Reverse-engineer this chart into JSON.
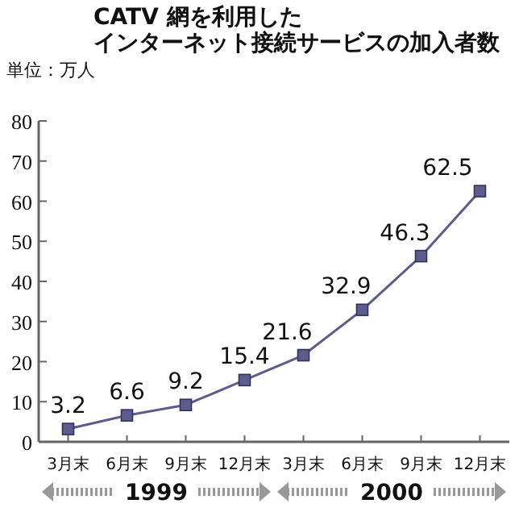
{
  "chart_data": {
    "type": "line",
    "title": "CATV 網を利用した",
    "subtitle": "インターネット接続サービスの加入者数",
    "ylabel": "単位：万人",
    "categories": [
      "3月末",
      "6月末",
      "9月末",
      "12月末",
      "3月末",
      "6月末",
      "9月末",
      "12月末"
    ],
    "series": [
      {
        "color": "#5c5c8e",
        "values": [
          3.2,
          6.6,
          9.2,
          15.4,
          21.6,
          32.9,
          46.3,
          62.5
        ]
      }
    ],
    "ylim": [
      0,
      80
    ],
    "yticks": [
      0,
      10,
      20,
      30,
      40,
      50,
      60,
      70,
      80
    ],
    "marker": "square",
    "data_labels": true,
    "annotations": [
      "1999",
      "2000"
    ]
  }
}
